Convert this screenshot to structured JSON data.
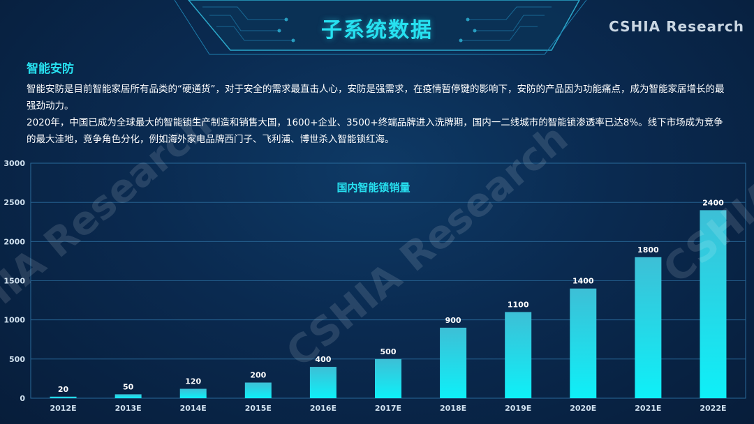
{
  "header": {
    "title": "子系统数据",
    "brand": "CSHIA  Research"
  },
  "section": {
    "title": "智能安防",
    "paragraphs": [
      "智能安防是目前智能家居所有品类的“硬通货”，对于安全的需求最直击人心，安防是强需求，在疫情暂停键的影响下，安防的产品因为功能痛点，成为智能家居增长的最强劲动力。",
      "2020年，中国已成为全球最大的智能锁生产制造和销售大国，1600+企业、3500+终端品牌进入洗牌期，国内一二线城市的智能锁渗透率已达8%。线下市场成为竞争的最大洼地，竞争角色分化，例如海外家电品牌西门子、飞利浦、博世杀入智能锁红海。"
    ]
  },
  "watermark": "CSHIA Research",
  "chart_data": {
    "type": "bar",
    "title": "国内智能锁销量",
    "categories": [
      "2012E",
      "2013E",
      "2014E",
      "2015E",
      "2016E",
      "2017E",
      "2018E",
      "2019E",
      "2020E",
      "2021E",
      "2022E"
    ],
    "values": [
      20,
      50,
      120,
      200,
      400,
      500,
      900,
      1100,
      1400,
      1800,
      2400
    ],
    "data_labels": [
      "20",
      "50",
      "120",
      "200",
      "400",
      "500",
      "900",
      "1100",
      "1400",
      "1800",
      "2400"
    ],
    "ylim": [
      0,
      3000
    ],
    "yticks": [
      "0",
      "500",
      "1000",
      "1500",
      "2000",
      "2500",
      "3000"
    ],
    "grid": true,
    "colors": {
      "bar_top": "#3dbfd6",
      "bar_bottom": "#0ef0f8",
      "title": "#27e1f0",
      "axis_text": "#cfe0ee",
      "grid": "#2a6a9a"
    }
  }
}
